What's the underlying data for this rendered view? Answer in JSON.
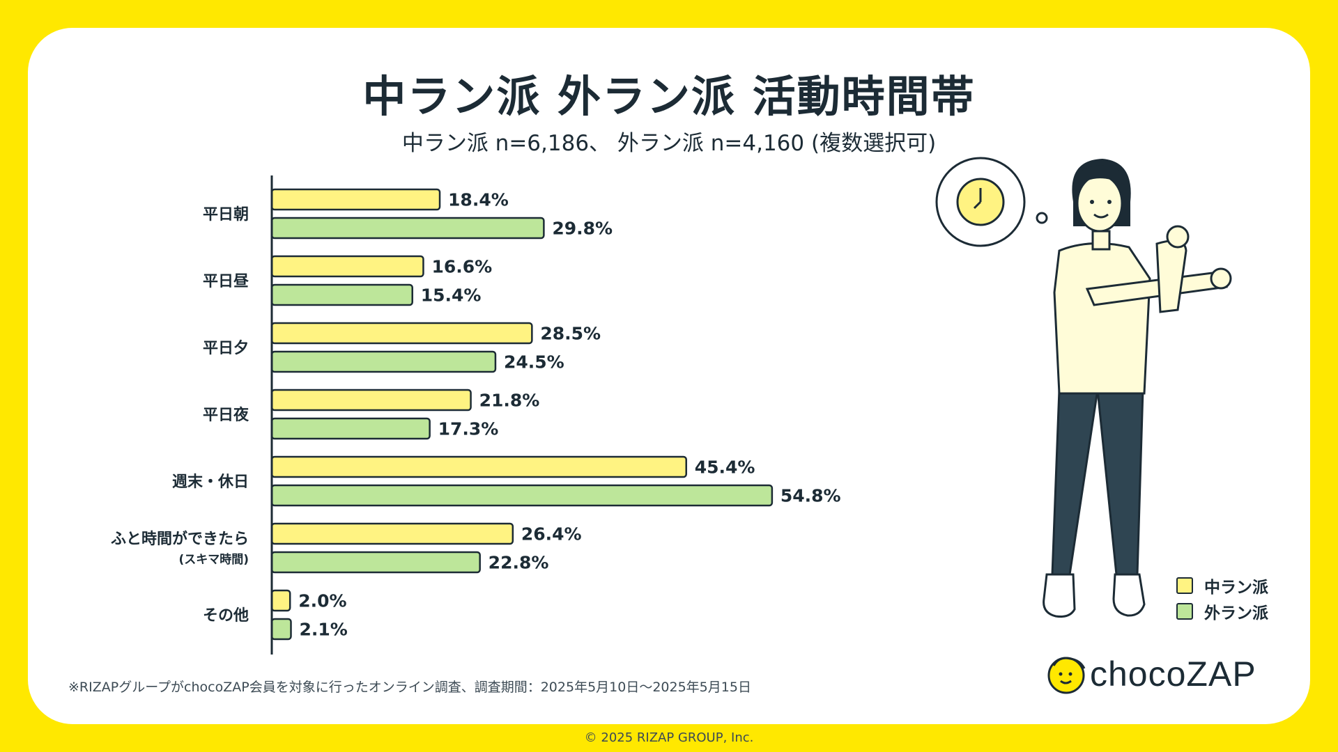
{
  "title": "中ラン派 外ラン派 活動時間帯",
  "subtitle": "中ラン派 n=6,186、 外ラン派 n=4,160 (複数選択可)",
  "colors": {
    "background": "#FFE800",
    "series1": "#FFF382",
    "series2": "#BDE69A",
    "outline": "#1c2b35"
  },
  "chart_data": {
    "type": "bar",
    "orientation": "horizontal",
    "title": "中ラン派 外ラン派 活動時間帯",
    "categories": [
      "平日朝",
      "平日昼",
      "平日夕",
      "平日夜",
      "週末・休日",
      "ふと時間ができたら",
      "その他"
    ],
    "category_sublabels": [
      "",
      "",
      "",
      "",
      "",
      "(スキマ時間)",
      ""
    ],
    "series": [
      {
        "name": "中ラン派",
        "values": [
          18.4,
          16.6,
          28.5,
          21.8,
          45.4,
          26.4,
          2.0
        ],
        "labels": [
          "18.4%",
          "16.6%",
          "28.5%",
          "21.8%",
          "45.4%",
          "26.4%",
          "2.0%"
        ]
      },
      {
        "name": "外ラン派",
        "values": [
          29.8,
          15.4,
          24.5,
          17.3,
          54.8,
          22.8,
          2.1
        ],
        "labels": [
          "29.8%",
          "15.4%",
          "24.5%",
          "17.3%",
          "54.8%",
          "22.8%",
          "2.1%"
        ]
      }
    ],
    "xlim": [
      0,
      54.8
    ],
    "grid": false,
    "legend": "bottom-right"
  },
  "legend": {
    "item1": "中ラン派",
    "item2": "外ラン派"
  },
  "footnote": "※RIZAPグループがchocoZAP会員を対象に行ったオンライン調査、調査期間：2025年5月10日〜2025年5月15日",
  "copyright": "© 2025 RIZAP GROUP, Inc.",
  "logo": {
    "text": "chocoZAP"
  }
}
